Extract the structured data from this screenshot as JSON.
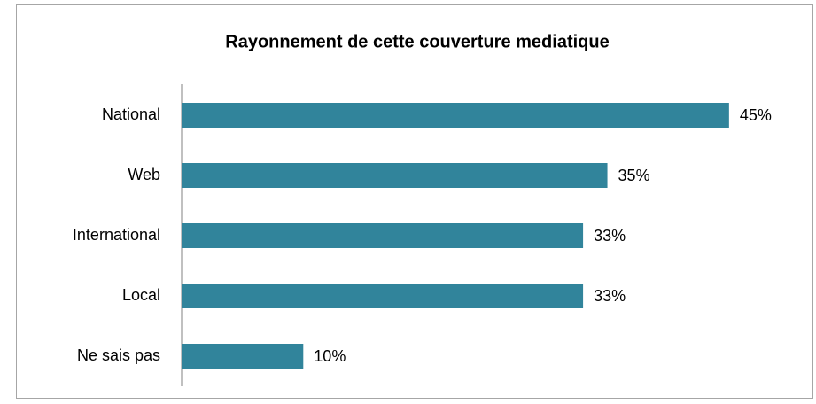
{
  "chart_data": {
    "type": "bar",
    "orientation": "horizontal",
    "title": "Rayonnement de cette couverture mediatique",
    "categories": [
      "National",
      "Web",
      "International",
      "Local",
      "Ne sais pas"
    ],
    "values": [
      45,
      35,
      33,
      33,
      10
    ],
    "value_labels": [
      "45%",
      "35%",
      "33%",
      "33%",
      "10%"
    ],
    "color": "#31849b"
  }
}
